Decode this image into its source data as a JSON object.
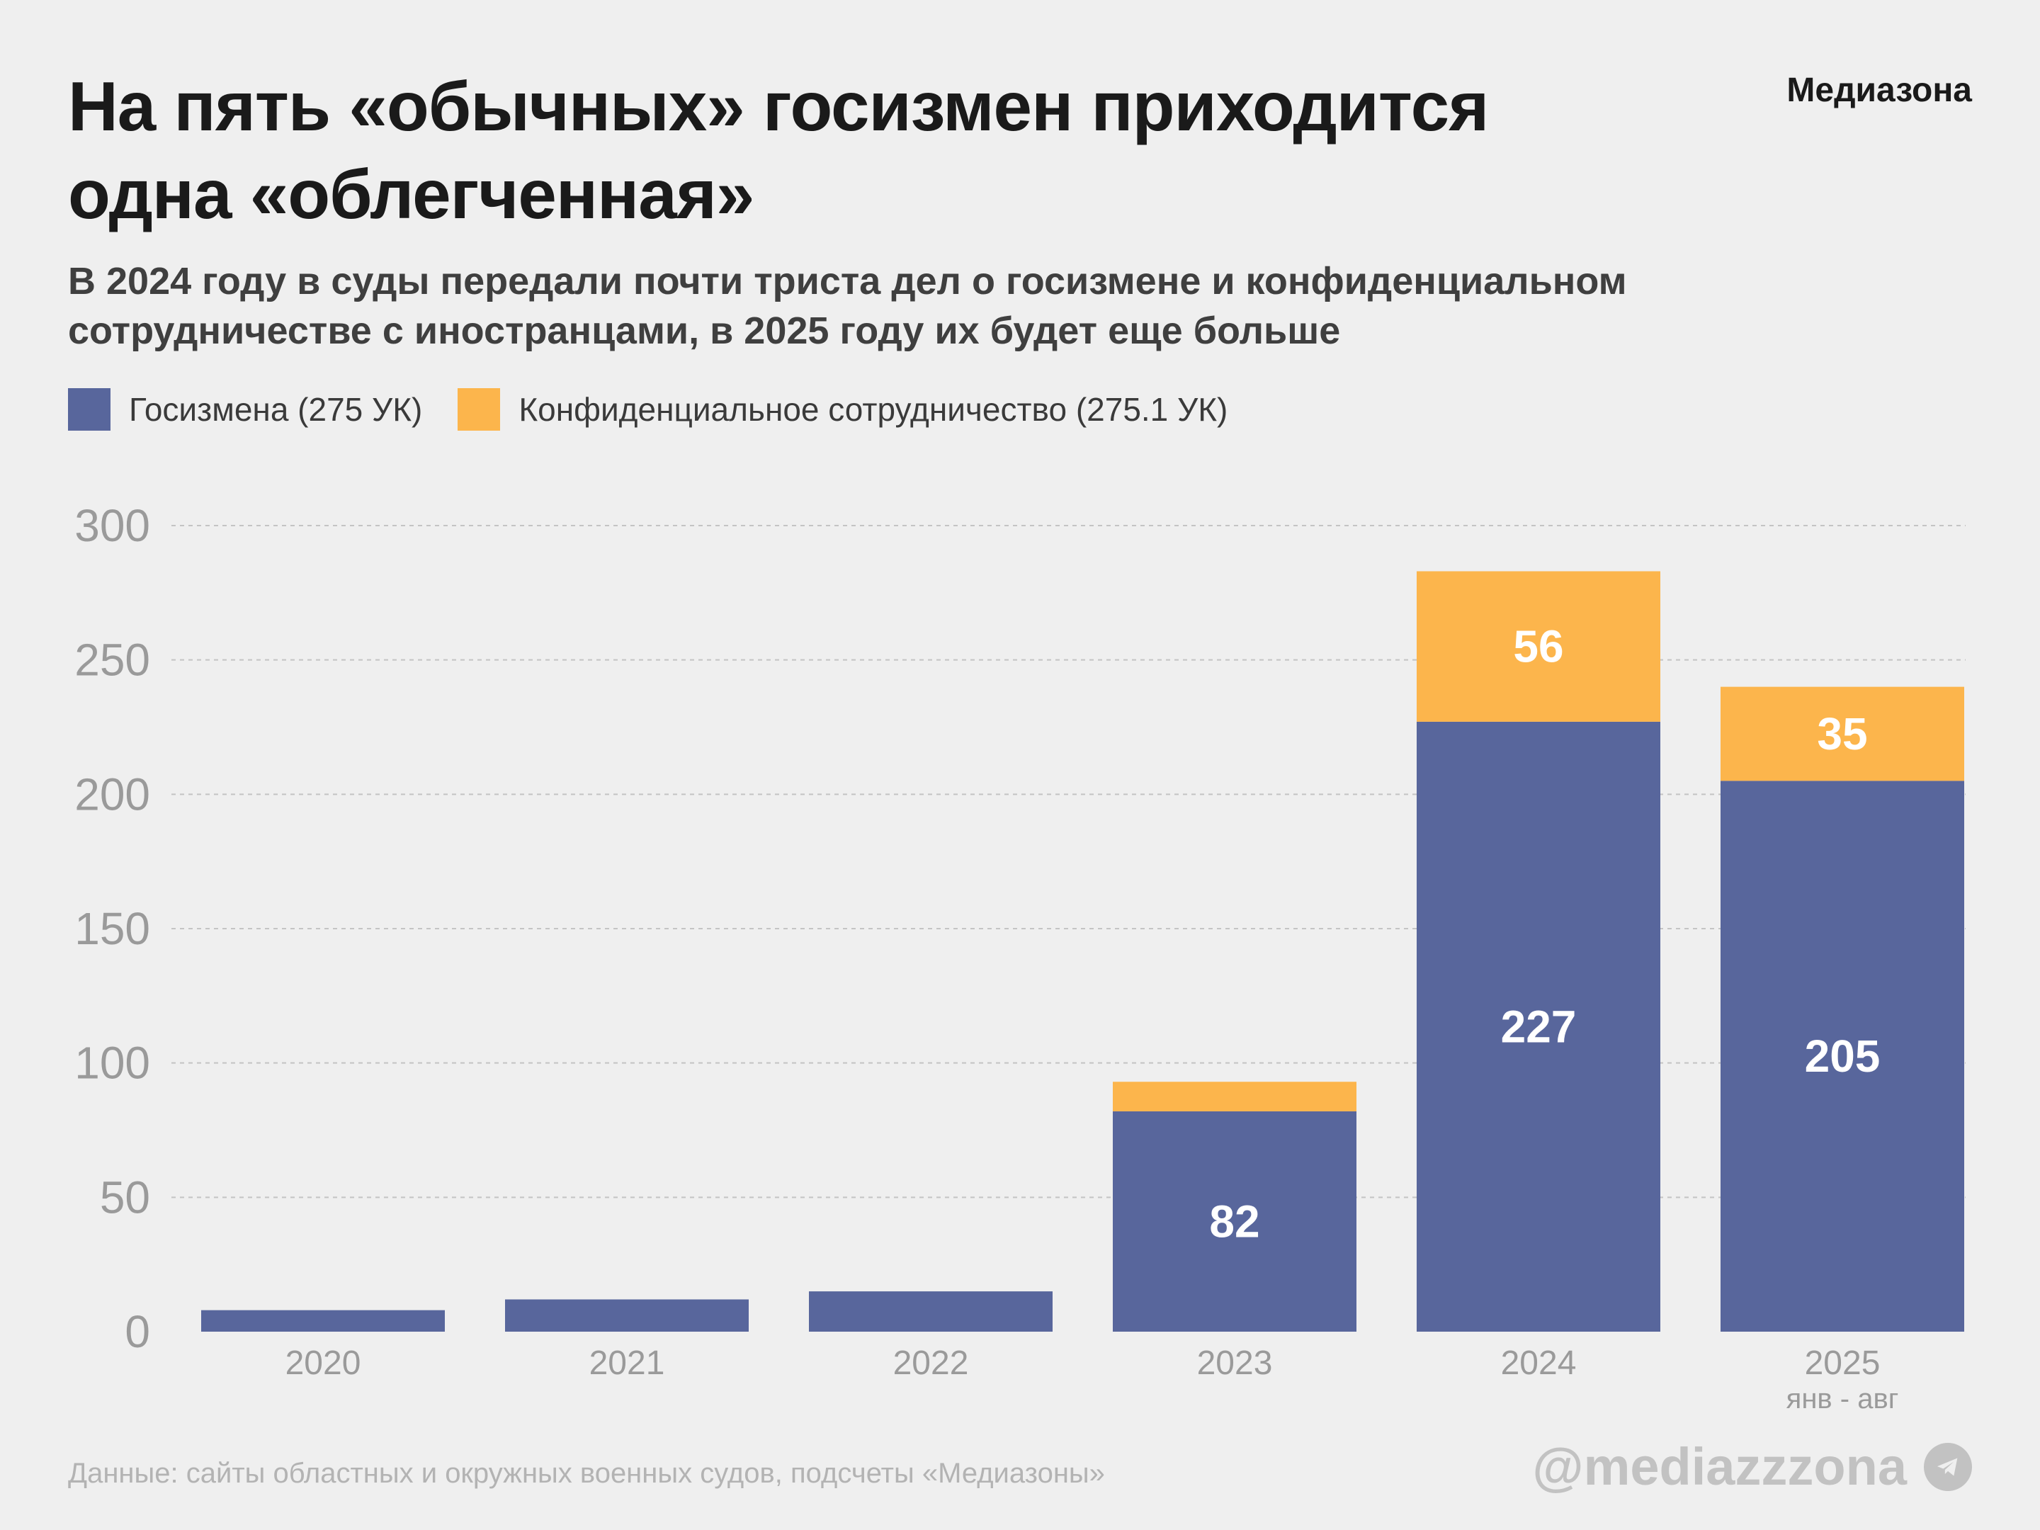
{
  "header": {
    "title": "На пять «обычных» госизмен приходится одна «облегченная»",
    "subtitle": "В 2024 году в суды передали почти триста дел о госизмене и конфиденциальном сотрудничестве с иностранцами, в 2025 году их будет еще больше",
    "brand": "Медиазона"
  },
  "colors": {
    "treason": "#58669c",
    "confidential": "#fcb54c",
    "grid": "#c4c4c4",
    "tick_text": "#9a9a9a"
  },
  "chart_data": {
    "type": "bar",
    "stacked": true,
    "categories": [
      "2020",
      "2021",
      "2022",
      "2023",
      "2024",
      "2025"
    ],
    "category_sublabels": [
      "",
      "",
      "",
      "",
      "",
      "янв - авг"
    ],
    "series": [
      {
        "name": "Госизмена (275 УК)",
        "color": "#58669c",
        "values": [
          8,
          12,
          15,
          82,
          227,
          205
        ],
        "labels": [
          "",
          "",
          "",
          "82",
          "227",
          "205"
        ]
      },
      {
        "name": "Конфиденциальное сотрудничество (275.1 УК)",
        "color": "#fcb54c",
        "values": [
          0,
          0,
          0,
          11,
          56,
          35
        ],
        "labels": [
          "",
          "",
          "",
          "",
          "56",
          "35"
        ]
      }
    ],
    "ylim": [
      0,
      300
    ],
    "yticks": [
      0,
      50,
      100,
      150,
      200,
      250,
      300
    ],
    "grid": true,
    "legend_position": "top-left"
  },
  "footer": {
    "source": "Данные: сайты областных и окружных военных судов, подсчеты «Медиазоны»",
    "handle": "@mediazzzona",
    "handle_icon": "telegram-icon"
  }
}
